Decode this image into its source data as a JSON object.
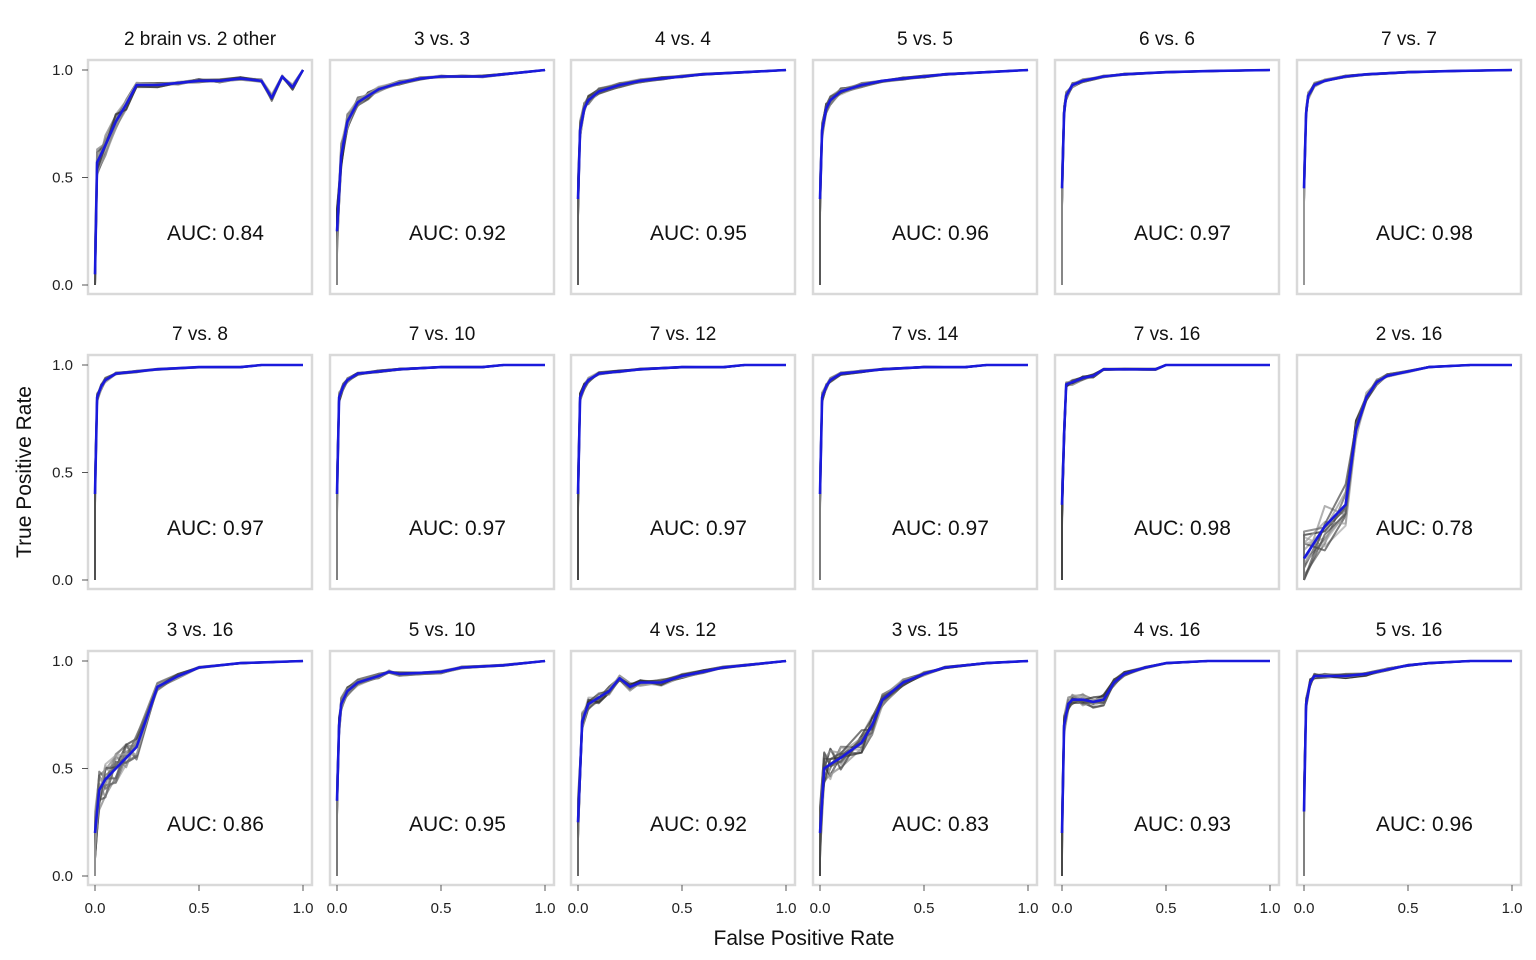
{
  "figure": {
    "ylabel": "True Positive Rate",
    "xlabel": "False Positive Rate",
    "colors": {
      "mean_curve": "#1a1adc",
      "fold_curves": "#3a3a3a",
      "frame": "#d9d9d9"
    }
  },
  "chart_data": [
    {
      "type": "line",
      "title": "2 brain vs. 2 other",
      "auc_label": "AUC: 0.84",
      "auc": 0.84,
      "xlim": [
        0,
        1
      ],
      "ylim": [
        0,
        1
      ],
      "x_ticks": [
        "0.0",
        "0.5",
        "1.0"
      ],
      "y_ticks": [
        "0.0",
        "0.5",
        "1.0"
      ],
      "xlabel": "",
      "ylabel": "",
      "mean_curve": {
        "x": [
          0,
          0.01,
          0.05,
          0.1,
          0.15,
          0.2,
          0.3,
          0.4,
          0.5,
          0.6,
          0.7,
          0.8,
          0.85,
          0.9,
          0.95,
          1
        ],
        "y": [
          0.05,
          0.57,
          0.65,
          0.76,
          0.84,
          0.93,
          0.93,
          0.94,
          0.95,
          0.95,
          0.96,
          0.95,
          0.87,
          0.97,
          0.92,
          1
        ]
      }
    },
    {
      "type": "line",
      "title": "3 vs. 3",
      "auc_label": "AUC: 0.92",
      "auc": 0.92,
      "xlim": [
        0,
        1
      ],
      "ylim": [
        0,
        1
      ],
      "x_ticks": [
        "0.0",
        "0.5",
        "1.0"
      ],
      "y_ticks": [
        "0.0",
        "0.5",
        "1.0"
      ],
      "xlabel": "",
      "ylabel": "",
      "mean_curve": {
        "x": [
          0,
          0.02,
          0.05,
          0.1,
          0.15,
          0.2,
          0.3,
          0.4,
          0.5,
          0.6,
          0.7,
          0.8,
          0.9,
          1
        ],
        "y": [
          0.25,
          0.6,
          0.76,
          0.85,
          0.88,
          0.91,
          0.94,
          0.96,
          0.97,
          0.97,
          0.97,
          0.98,
          0.99,
          1
        ]
      }
    },
    {
      "type": "line",
      "title": "4 vs. 4",
      "auc_label": "AUC: 0.95",
      "auc": 0.95,
      "xlim": [
        0,
        1
      ],
      "ylim": [
        0,
        1
      ],
      "x_ticks": [
        "0.0",
        "0.5",
        "1.0"
      ],
      "y_ticks": [
        "0.0",
        "0.5",
        "1.0"
      ],
      "xlabel": "",
      "ylabel": "",
      "mean_curve": {
        "x": [
          0,
          0.01,
          0.03,
          0.05,
          0.1,
          0.2,
          0.3,
          0.4,
          0.5,
          0.6,
          0.8,
          1
        ],
        "y": [
          0.4,
          0.72,
          0.82,
          0.86,
          0.9,
          0.93,
          0.95,
          0.96,
          0.97,
          0.98,
          0.99,
          1
        ]
      }
    },
    {
      "type": "line",
      "title": "5 vs. 5",
      "auc_label": "AUC: 0.96",
      "auc": 0.96,
      "xlim": [
        0,
        1
      ],
      "ylim": [
        0,
        1
      ],
      "x_ticks": [
        "0.0",
        "0.5",
        "1.0"
      ],
      "y_ticks": [
        "0.0",
        "0.5",
        "1.0"
      ],
      "xlabel": "",
      "ylabel": "",
      "mean_curve": {
        "x": [
          0,
          0.01,
          0.03,
          0.05,
          0.1,
          0.2,
          0.3,
          0.4,
          0.5,
          0.6,
          0.8,
          1
        ],
        "y": [
          0.4,
          0.72,
          0.82,
          0.86,
          0.9,
          0.93,
          0.95,
          0.96,
          0.97,
          0.98,
          0.99,
          1
        ]
      }
    },
    {
      "type": "line",
      "title": "6 vs. 6",
      "auc_label": "AUC: 0.97",
      "auc": 0.97,
      "xlim": [
        0,
        1
      ],
      "ylim": [
        0,
        1
      ],
      "x_ticks": [
        "0.0",
        "0.5",
        "1.0"
      ],
      "y_ticks": [
        "0.0",
        "0.5",
        "1.0"
      ],
      "xlabel": "",
      "ylabel": "",
      "mean_curve": {
        "x": [
          0,
          0.01,
          0.02,
          0.05,
          0.1,
          0.2,
          0.3,
          0.5,
          0.7,
          1
        ],
        "y": [
          0.45,
          0.8,
          0.88,
          0.93,
          0.95,
          0.97,
          0.98,
          0.99,
          0.995,
          1
        ]
      }
    },
    {
      "type": "line",
      "title": "7 vs. 7",
      "auc_label": "AUC: 0.98",
      "auc": 0.98,
      "xlim": [
        0,
        1
      ],
      "ylim": [
        0,
        1
      ],
      "x_ticks": [
        "0.0",
        "0.5",
        "1.0"
      ],
      "y_ticks": [
        "0.0",
        "0.5",
        "1.0"
      ],
      "xlabel": "",
      "ylabel": "",
      "mean_curve": {
        "x": [
          0,
          0.01,
          0.02,
          0.05,
          0.1,
          0.2,
          0.3,
          0.5,
          0.7,
          1
        ],
        "y": [
          0.45,
          0.8,
          0.88,
          0.93,
          0.95,
          0.97,
          0.98,
          0.99,
          0.995,
          1
        ]
      }
    },
    {
      "type": "line",
      "title": "7 vs. 8",
      "auc_label": "AUC: 0.97",
      "auc": 0.97,
      "xlim": [
        0,
        1
      ],
      "ylim": [
        0,
        1
      ],
      "x_ticks": [
        "0.0",
        "0.5",
        "1.0"
      ],
      "y_ticks": [
        "0.0",
        "0.5",
        "1.0"
      ],
      "xlabel": "",
      "ylabel": "",
      "mean_curve": {
        "x": [
          0,
          0.01,
          0.03,
          0.05,
          0.1,
          0.2,
          0.3,
          0.5,
          0.7,
          0.8,
          1
        ],
        "y": [
          0.4,
          0.85,
          0.9,
          0.93,
          0.96,
          0.97,
          0.98,
          0.99,
          0.99,
          1,
          1
        ]
      }
    },
    {
      "type": "line",
      "title": "7 vs. 10",
      "auc_label": "AUC: 0.97",
      "auc": 0.97,
      "xlim": [
        0,
        1
      ],
      "ylim": [
        0,
        1
      ],
      "x_ticks": [
        "0.0",
        "0.5",
        "1.0"
      ],
      "y_ticks": [
        "0.0",
        "0.5",
        "1.0"
      ],
      "xlabel": "",
      "ylabel": "",
      "mean_curve": {
        "x": [
          0,
          0.01,
          0.03,
          0.05,
          0.1,
          0.2,
          0.3,
          0.5,
          0.7,
          0.8,
          1
        ],
        "y": [
          0.4,
          0.85,
          0.9,
          0.93,
          0.96,
          0.97,
          0.98,
          0.99,
          0.99,
          1,
          1
        ]
      }
    },
    {
      "type": "line",
      "title": "7 vs. 12",
      "auc_label": "AUC: 0.97",
      "auc": 0.97,
      "xlim": [
        0,
        1
      ],
      "ylim": [
        0,
        1
      ],
      "x_ticks": [
        "0.0",
        "0.5",
        "1.0"
      ],
      "y_ticks": [
        "0.0",
        "0.5",
        "1.0"
      ],
      "xlabel": "",
      "ylabel": "",
      "mean_curve": {
        "x": [
          0,
          0.01,
          0.03,
          0.05,
          0.1,
          0.2,
          0.3,
          0.5,
          0.7,
          0.8,
          1
        ],
        "y": [
          0.4,
          0.85,
          0.9,
          0.93,
          0.96,
          0.97,
          0.98,
          0.99,
          0.99,
          1,
          1
        ]
      }
    },
    {
      "type": "line",
      "title": "7 vs. 14",
      "auc_label": "AUC: 0.97",
      "auc": 0.97,
      "xlim": [
        0,
        1
      ],
      "ylim": [
        0,
        1
      ],
      "x_ticks": [
        "0.0",
        "0.5",
        "1.0"
      ],
      "y_ticks": [
        "0.0",
        "0.5",
        "1.0"
      ],
      "xlabel": "",
      "ylabel": "",
      "mean_curve": {
        "x": [
          0,
          0.01,
          0.03,
          0.05,
          0.1,
          0.2,
          0.3,
          0.5,
          0.7,
          0.8,
          1
        ],
        "y": [
          0.4,
          0.85,
          0.9,
          0.93,
          0.96,
          0.97,
          0.98,
          0.99,
          0.99,
          1,
          1
        ]
      }
    },
    {
      "type": "line",
      "title": "7 vs. 16",
      "auc_label": "AUC: 0.98",
      "auc": 0.98,
      "xlim": [
        0,
        1
      ],
      "ylim": [
        0,
        1
      ],
      "x_ticks": [
        "0.0",
        "0.5",
        "1.0"
      ],
      "y_ticks": [
        "0.0",
        "0.5",
        "1.0"
      ],
      "xlabel": "",
      "ylabel": "",
      "mean_curve": {
        "x": [
          0,
          0.01,
          0.02,
          0.05,
          0.1,
          0.15,
          0.2,
          0.3,
          0.45,
          0.5,
          0.7,
          1
        ],
        "y": [
          0.35,
          0.68,
          0.91,
          0.92,
          0.94,
          0.95,
          0.98,
          0.98,
          0.98,
          1,
          1,
          1
        ]
      }
    },
    {
      "type": "line",
      "title": "2 vs. 16",
      "auc_label": "AUC: 0.78",
      "auc": 0.78,
      "xlim": [
        0,
        1
      ],
      "ylim": [
        0,
        1
      ],
      "x_ticks": [
        "0.0",
        "0.5",
        "1.0"
      ],
      "y_ticks": [
        "0.0",
        "0.5",
        "1.0"
      ],
      "xlabel": "",
      "ylabel": "",
      "mean_curve": {
        "x": [
          0,
          0.1,
          0.2,
          0.25,
          0.3,
          0.35,
          0.4,
          0.5,
          0.6,
          0.8,
          1
        ],
        "y": [
          0.1,
          0.25,
          0.35,
          0.7,
          0.85,
          0.92,
          0.95,
          0.97,
          0.99,
          1,
          1
        ]
      }
    },
    {
      "type": "line",
      "title": "3 vs. 16",
      "auc_label": "AUC: 0.86",
      "auc": 0.86,
      "xlim": [
        0,
        1
      ],
      "ylim": [
        0,
        1
      ],
      "x_ticks": [
        "0.0",
        "0.5",
        "1.0"
      ],
      "y_ticks": [
        "0.0",
        "0.5",
        "1.0"
      ],
      "xlabel": "",
      "ylabel": "",
      "mean_curve": {
        "x": [
          0,
          0.02,
          0.05,
          0.1,
          0.15,
          0.2,
          0.3,
          0.4,
          0.5,
          0.7,
          1
        ],
        "y": [
          0.2,
          0.4,
          0.45,
          0.5,
          0.55,
          0.6,
          0.88,
          0.93,
          0.97,
          0.99,
          1
        ]
      }
    },
    {
      "type": "line",
      "title": "5 vs. 10",
      "auc_label": "AUC: 0.95",
      "auc": 0.95,
      "xlim": [
        0,
        1
      ],
      "ylim": [
        0,
        1
      ],
      "x_ticks": [
        "0.0",
        "0.5",
        "1.0"
      ],
      "y_ticks": [
        "0.0",
        "0.5",
        "1.0"
      ],
      "xlabel": "",
      "ylabel": "",
      "mean_curve": {
        "x": [
          0,
          0.01,
          0.02,
          0.05,
          0.1,
          0.2,
          0.25,
          0.3,
          0.5,
          0.6,
          0.8,
          1
        ],
        "y": [
          0.35,
          0.7,
          0.8,
          0.86,
          0.9,
          0.93,
          0.95,
          0.94,
          0.95,
          0.97,
          0.98,
          1
        ]
      }
    },
    {
      "type": "line",
      "title": "4 vs. 12",
      "auc_label": "AUC: 0.92",
      "auc": 0.92,
      "xlim": [
        0,
        1
      ],
      "ylim": [
        0,
        1
      ],
      "x_ticks": [
        "0.0",
        "0.5",
        "1.0"
      ],
      "y_ticks": [
        "0.0",
        "0.5",
        "1.0"
      ],
      "xlabel": "",
      "ylabel": "",
      "mean_curve": {
        "x": [
          0,
          0.02,
          0.05,
          0.1,
          0.15,
          0.2,
          0.25,
          0.3,
          0.4,
          0.5,
          0.6,
          0.7,
          0.8,
          1
        ],
        "y": [
          0.25,
          0.72,
          0.8,
          0.83,
          0.86,
          0.92,
          0.88,
          0.9,
          0.9,
          0.93,
          0.95,
          0.97,
          0.98,
          1
        ]
      }
    },
    {
      "type": "line",
      "title": "3 vs. 15",
      "auc_label": "AUC: 0.83",
      "auc": 0.83,
      "xlim": [
        0,
        1
      ],
      "ylim": [
        0,
        1
      ],
      "x_ticks": [
        "0.0",
        "0.5",
        "1.0"
      ],
      "y_ticks": [
        "0.0",
        "0.5",
        "1.0"
      ],
      "xlabel": "",
      "ylabel": "",
      "mean_curve": {
        "x": [
          0,
          0.02,
          0.05,
          0.1,
          0.2,
          0.25,
          0.3,
          0.4,
          0.5,
          0.6,
          0.8,
          1
        ],
        "y": [
          0.2,
          0.5,
          0.52,
          0.55,
          0.62,
          0.7,
          0.82,
          0.9,
          0.94,
          0.97,
          0.99,
          1
        ]
      }
    },
    {
      "type": "line",
      "title": "4 vs. 16",
      "auc_label": "AUC: 0.93",
      "auc": 0.93,
      "xlim": [
        0,
        1
      ],
      "ylim": [
        0,
        1
      ],
      "x_ticks": [
        "0.0",
        "0.5",
        "1.0"
      ],
      "y_ticks": [
        "0.0",
        "0.5",
        "1.0"
      ],
      "xlabel": "",
      "ylabel": "",
      "mean_curve": {
        "x": [
          0,
          0.01,
          0.03,
          0.05,
          0.1,
          0.15,
          0.2,
          0.25,
          0.3,
          0.4,
          0.5,
          0.7,
          1
        ],
        "y": [
          0.2,
          0.7,
          0.8,
          0.82,
          0.82,
          0.81,
          0.82,
          0.9,
          0.94,
          0.97,
          0.99,
          1,
          1
        ]
      }
    },
    {
      "type": "line",
      "title": "5 vs. 16",
      "auc_label": "AUC: 0.96",
      "auc": 0.96,
      "xlim": [
        0,
        1
      ],
      "ylim": [
        0,
        1
      ],
      "x_ticks": [
        "0.0",
        "0.5",
        "1.0"
      ],
      "y_ticks": [
        "0.0",
        "0.5",
        "1.0"
      ],
      "xlabel": "",
      "ylabel": "",
      "mean_curve": {
        "x": [
          0,
          0.01,
          0.03,
          0.05,
          0.1,
          0.2,
          0.3,
          0.4,
          0.5,
          0.6,
          0.8,
          1
        ],
        "y": [
          0.3,
          0.8,
          0.9,
          0.93,
          0.93,
          0.93,
          0.94,
          0.96,
          0.98,
          0.99,
          1,
          1
        ]
      }
    }
  ]
}
